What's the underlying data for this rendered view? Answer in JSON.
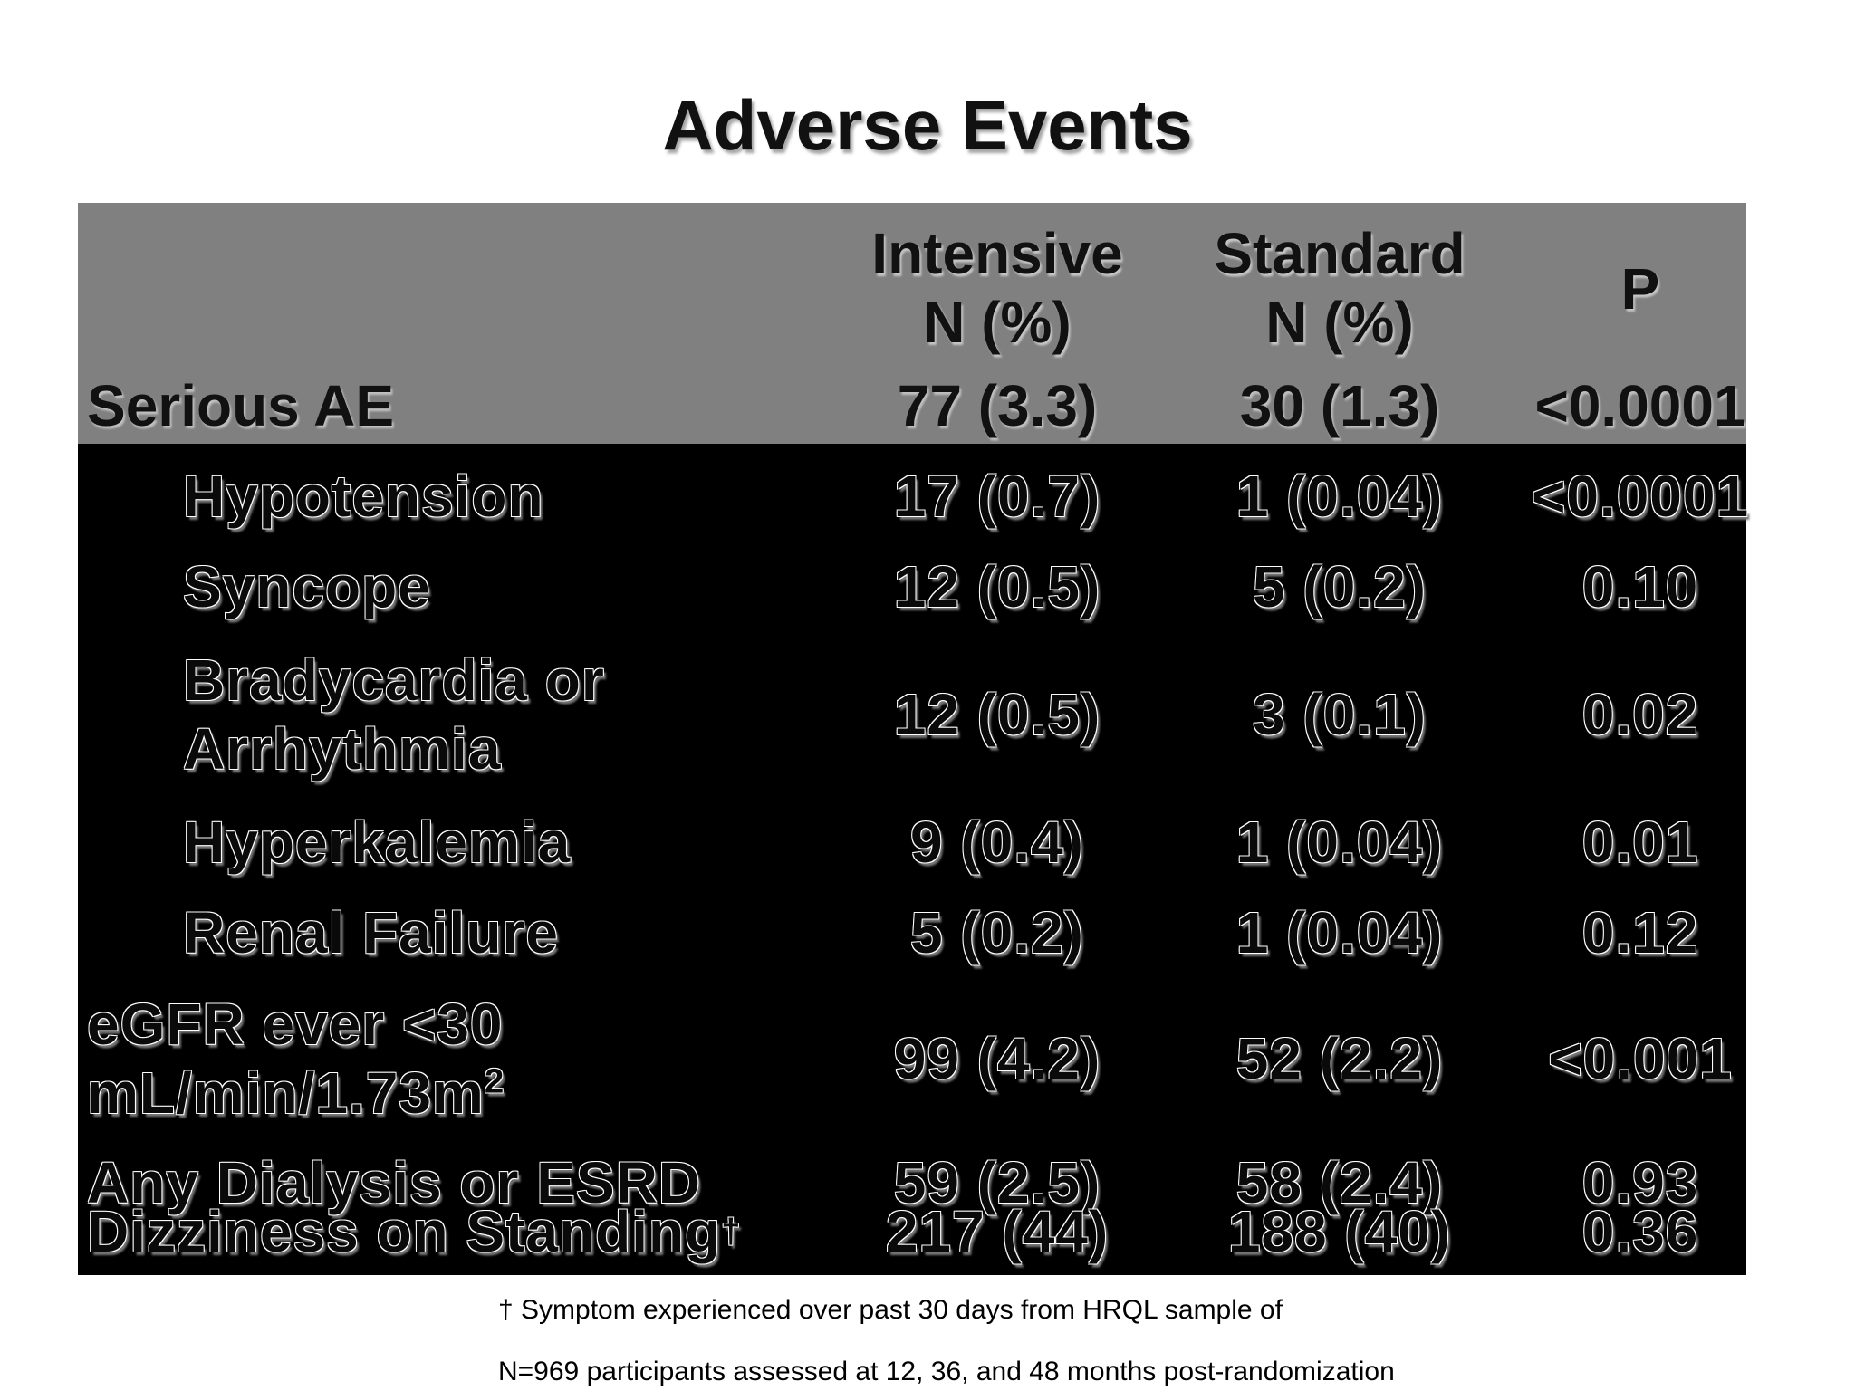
{
  "title": "Adverse Events",
  "table": {
    "header": {
      "intensive_line1": "Intensive",
      "intensive_line2": "N (%)",
      "standard_line1": "Standard",
      "standard_line2": "N (%)",
      "p": "P"
    },
    "serious": {
      "label": "Serious AE",
      "intensive": "77 (3.3)",
      "standard": "30 (1.3)",
      "p": "<0.0001"
    },
    "rows": [
      {
        "label": "Hypotension",
        "intensive": "17 (0.7)",
        "standard": "1 (0.04)",
        "p": "<0.0001"
      },
      {
        "label": "Syncope",
        "intensive": "12 (0.5)",
        "standard": "5 (0.2)",
        "p": "0.10"
      },
      {
        "label_line1": "Bradycardia or",
        "label_line2": "Arrhythmia",
        "intensive": "12 (0.5)",
        "standard": "3 (0.1)",
        "p": "0.02"
      },
      {
        "label": "Hyperkalemia",
        "intensive": "9 (0.4)",
        "standard": "1 (0.04)",
        "p": "0.01"
      },
      {
        "label": "Renal Failure",
        "intensive": "5 (0.2)",
        "standard": "1 (0.04)",
        "p": "0.12"
      },
      {
        "label_line1": "eGFR ever <30",
        "label_line2": "mL/min/1.73m",
        "label_sup": "2",
        "intensive": "99 (4.2)",
        "standard": "52 (2.2)",
        "p": "<0.001"
      },
      {
        "label": "Any Dialysis or ESRD",
        "intensive": "59 (2.5)",
        "standard": "58 (2.4)",
        "p": "0.93"
      },
      {
        "label": "Dizziness on Standing",
        "label_sup": "†",
        "intensive": "217 (44)",
        "standard": "188 (40)",
        "p": "0.36"
      }
    ]
  },
  "footnote": {
    "line1": "†  Symptom experienced over past 30 days from HRQL sample of",
    "line2": "N=969 participants assessed at 12, 36, and 48 months post-randomization"
  }
}
